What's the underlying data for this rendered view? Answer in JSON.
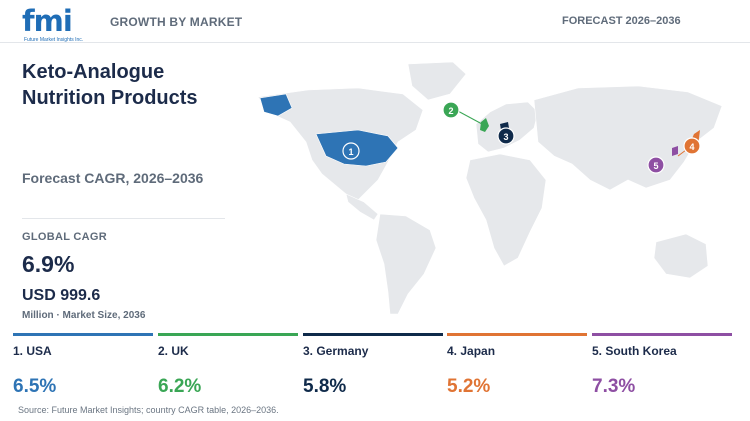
{
  "header": {
    "logo_text": "fmi",
    "logo_subtext": "Future Market Insights Inc.",
    "left_label": "GROWTH BY MARKET",
    "right_label": "FORECAST 2026–2036"
  },
  "summary": {
    "title_line1": "Keto-Analogue",
    "title_line2": "Nutrition Products",
    "forecast_label": "Forecast CAGR, 2026–2036",
    "global_label": "GLOBAL CAGR",
    "global_value": "6.9%",
    "market_value": "USD 999.6",
    "market_note": "Million · Market Size, 2036"
  },
  "colors": {
    "USA": "#2e74b5",
    "UK": "#3aa655",
    "Germany": "#0f2a4a",
    "Japan": "#e07434",
    "South Korea": "#8e4fa3",
    "land": "#e6e8eb"
  },
  "chart_data": {
    "type": "bar",
    "categories": [
      "USA",
      "UK",
      "Germany",
      "Japan",
      "South Korea"
    ],
    "ranks": [
      "1",
      "2",
      "3",
      "4",
      "5"
    ],
    "labels": [
      "1. USA",
      "2. UK",
      "3. Germany",
      "4. Japan",
      "5. South Korea"
    ],
    "values": [
      6.5,
      6.2,
      5.8,
      5.2,
      7.3
    ],
    "value_labels": [
      "6.5%",
      "6.2%",
      "5.8%",
      "5.2%",
      "7.3%"
    ],
    "unit": "%"
  },
  "source": "Source: Future Market Insights; country CAGR table, 2026–2036."
}
